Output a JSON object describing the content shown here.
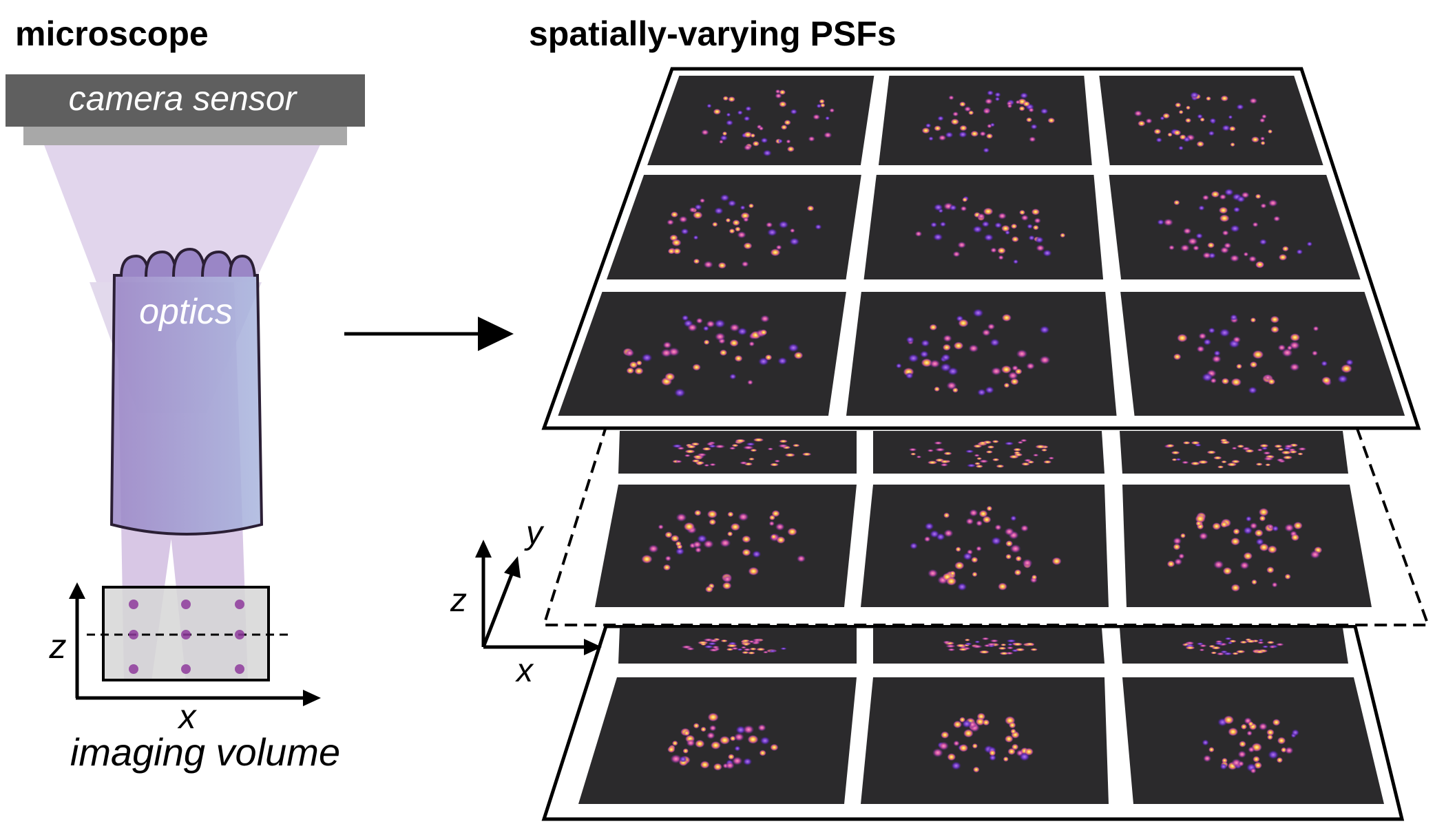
{
  "left_panel": {
    "title": "microscope",
    "camera_label": "camera sensor",
    "optics_label": "optics",
    "volume_label": "imaging volume",
    "axis_z": "z",
    "axis_x": "x"
  },
  "right_panel": {
    "title": "spatially-varying PSFs",
    "axis_x": "x",
    "axis_y": "y",
    "axis_z": "z"
  },
  "colors": {
    "light_beam": "#b08cc6",
    "lens_body": "#8c7fbe",
    "sample_box": "#d6d6d6",
    "bead": "#8e3a9c",
    "camera_dark": "#5f5f5f",
    "camera_strip": "#a8a8a8",
    "psf_background": "#2b2a2c",
    "psf_hot": "#ffd36a",
    "psf_warm": "#e0589a",
    "psf_cool": "#6a2fb0"
  }
}
